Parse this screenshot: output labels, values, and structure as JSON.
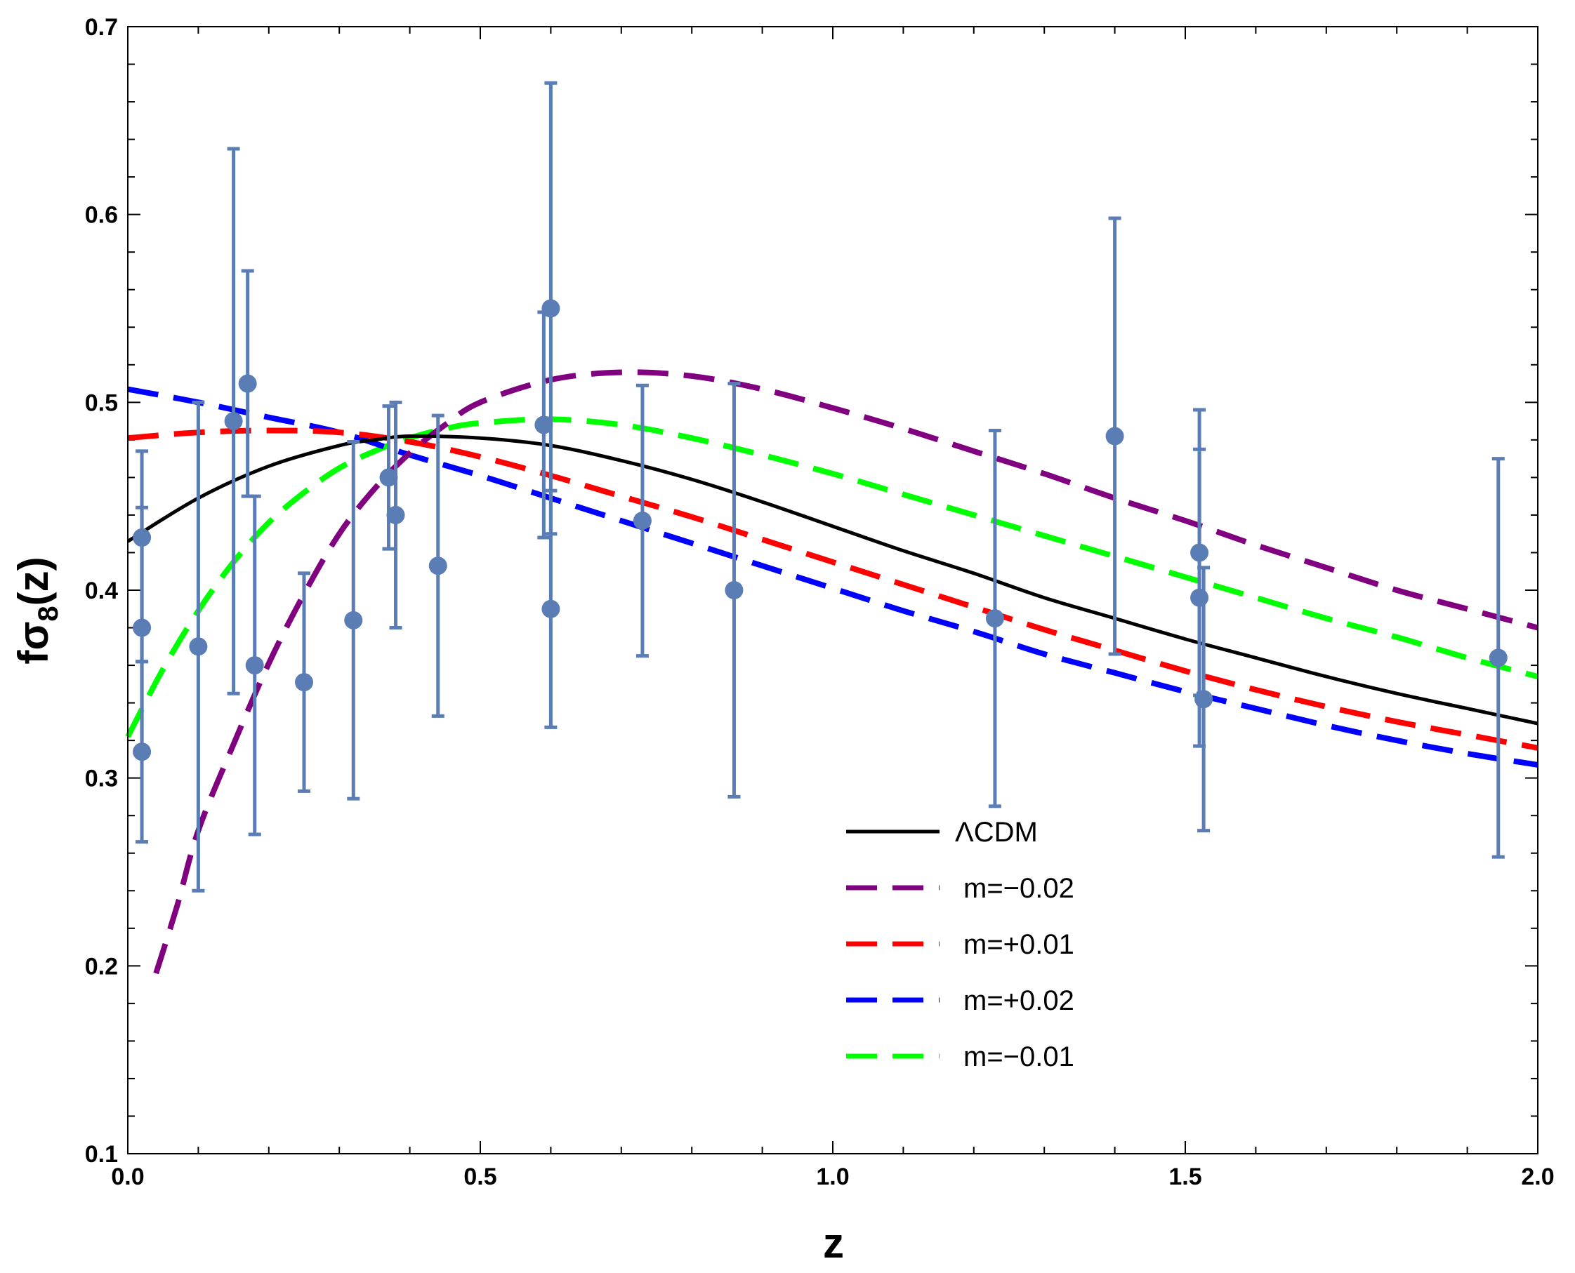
{
  "chart_data": {
    "type": "line",
    "title": "",
    "xlabel": "z",
    "ylabel": {
      "main": "fσ",
      "sub": "8",
      "tail": "(z)"
    },
    "xlim": [
      0.0,
      2.0
    ],
    "ylim": [
      0.1,
      0.7
    ],
    "xticks": [
      "0.0",
      "0.5",
      "1.0",
      "1.5",
      "2.0"
    ],
    "yticks": [
      "0.1",
      "0.2",
      "0.3",
      "0.4",
      "0.5",
      "0.6",
      "0.7"
    ],
    "xtick_values": [
      0.0,
      0.5,
      1.0,
      1.5,
      2.0
    ],
    "ytick_values": [
      0.1,
      0.2,
      0.3,
      0.4,
      0.5,
      0.6,
      0.7
    ],
    "legend_position": "lower-center",
    "series": [
      {
        "name": "ΛCDM",
        "color": "#000000",
        "style": "solid",
        "x": [
          0.0,
          0.1,
          0.2,
          0.3,
          0.35,
          0.4,
          0.5,
          0.6,
          0.7,
          0.8,
          0.9,
          1.0,
          1.1,
          1.2,
          1.3,
          1.4,
          1.5,
          1.6,
          1.7,
          1.8,
          1.9,
          2.0
        ],
        "y": [
          0.426,
          0.449,
          0.466,
          0.477,
          0.48,
          0.482,
          0.481,
          0.477,
          0.469,
          0.459,
          0.447,
          0.434,
          0.421,
          0.409,
          0.396,
          0.385,
          0.374,
          0.364,
          0.354,
          0.345,
          0.337,
          0.329
        ]
      },
      {
        "name": "m=−0.02",
        "color": "#800080",
        "style": "dashed",
        "x": [
          0.04,
          0.07,
          0.1,
          0.15,
          0.2,
          0.25,
          0.3,
          0.35,
          0.4,
          0.45,
          0.5,
          0.6,
          0.7,
          0.8,
          0.9,
          1.0,
          1.1,
          1.2,
          1.3,
          1.4,
          1.5,
          1.6,
          1.7,
          1.8,
          1.9,
          2.0
        ],
        "y": [
          0.196,
          0.232,
          0.272,
          0.318,
          0.361,
          0.398,
          0.43,
          0.454,
          0.473,
          0.488,
          0.5,
          0.512,
          0.516,
          0.514,
          0.507,
          0.497,
          0.486,
          0.474,
          0.462,
          0.449,
          0.437,
          0.424,
          0.412,
          0.4,
          0.39,
          0.38
        ]
      },
      {
        "name": "m=+0.01",
        "color": "#ff0000",
        "style": "dashed",
        "x": [
          0.0,
          0.1,
          0.2,
          0.3,
          0.4,
          0.5,
          0.6,
          0.7,
          0.8,
          0.9,
          1.0,
          1.1,
          1.2,
          1.3,
          1.4,
          1.5,
          1.6,
          1.7,
          1.8,
          1.9,
          2.0
        ],
        "y": [
          0.481,
          0.484,
          0.485,
          0.484,
          0.479,
          0.471,
          0.461,
          0.45,
          0.439,
          0.427,
          0.415,
          0.403,
          0.391,
          0.379,
          0.368,
          0.357,
          0.347,
          0.338,
          0.33,
          0.323,
          0.316
        ]
      },
      {
        "name": "m=+0.02",
        "color": "#0000ff",
        "style": "dashed",
        "x": [
          0.0,
          0.1,
          0.2,
          0.3,
          0.4,
          0.5,
          0.6,
          0.7,
          0.8,
          0.9,
          1.0,
          1.1,
          1.2,
          1.3,
          1.4,
          1.5,
          1.6,
          1.7,
          1.8,
          1.9,
          2.0
        ],
        "y": [
          0.507,
          0.5,
          0.492,
          0.484,
          0.472,
          0.461,
          0.449,
          0.437,
          0.425,
          0.413,
          0.401,
          0.389,
          0.378,
          0.366,
          0.356,
          0.346,
          0.337,
          0.328,
          0.32,
          0.313,
          0.307
        ]
      },
      {
        "name": "m=−0.01",
        "color": "#00ff00",
        "style": "dashed",
        "x": [
          0.0,
          0.05,
          0.1,
          0.15,
          0.2,
          0.25,
          0.3,
          0.35,
          0.4,
          0.45,
          0.5,
          0.6,
          0.7,
          0.8,
          0.9,
          1.0,
          1.1,
          1.2,
          1.3,
          1.4,
          1.5,
          1.6,
          1.7,
          1.8,
          1.9,
          2.0
        ],
        "y": [
          0.322,
          0.358,
          0.389,
          0.415,
          0.436,
          0.452,
          0.465,
          0.474,
          0.481,
          0.486,
          0.489,
          0.491,
          0.488,
          0.481,
          0.472,
          0.462,
          0.451,
          0.44,
          0.429,
          0.418,
          0.407,
          0.396,
          0.385,
          0.375,
          0.364,
          0.354
        ]
      }
    ],
    "errorbars": {
      "name": "data",
      "color": "#5b7db5",
      "points": [
        {
          "x": 0.02,
          "y": 0.428,
          "lo": 0.362,
          "hi": 0.474
        },
        {
          "x": 0.02,
          "y": 0.38,
          "lo": 0.316,
          "hi": 0.444
        },
        {
          "x": 0.02,
          "y": 0.314,
          "lo": 0.266,
          "hi": 0.362
        },
        {
          "x": 0.1,
          "y": 0.37,
          "lo": 0.24,
          "hi": 0.5
        },
        {
          "x": 0.15,
          "y": 0.49,
          "lo": 0.345,
          "hi": 0.635
        },
        {
          "x": 0.17,
          "y": 0.51,
          "lo": 0.45,
          "hi": 0.57
        },
        {
          "x": 0.18,
          "y": 0.36,
          "lo": 0.27,
          "hi": 0.45
        },
        {
          "x": 0.25,
          "y": 0.351,
          "lo": 0.293,
          "hi": 0.409
        },
        {
          "x": 0.32,
          "y": 0.384,
          "lo": 0.289,
          "hi": 0.479
        },
        {
          "x": 0.37,
          "y": 0.46,
          "lo": 0.422,
          "hi": 0.498
        },
        {
          "x": 0.38,
          "y": 0.44,
          "lo": 0.38,
          "hi": 0.5
        },
        {
          "x": 0.44,
          "y": 0.413,
          "lo": 0.333,
          "hi": 0.493
        },
        {
          "x": 0.59,
          "y": 0.488,
          "lo": 0.428,
          "hi": 0.548
        },
        {
          "x": 0.6,
          "y": 0.55,
          "lo": 0.43,
          "hi": 0.67
        },
        {
          "x": 0.6,
          "y": 0.39,
          "lo": 0.327,
          "hi": 0.453
        },
        {
          "x": 0.73,
          "y": 0.437,
          "lo": 0.365,
          "hi": 0.509
        },
        {
          "x": 0.86,
          "y": 0.4,
          "lo": 0.29,
          "hi": 0.51
        },
        {
          "x": 1.23,
          "y": 0.385,
          "lo": 0.285,
          "hi": 0.485
        },
        {
          "x": 1.4,
          "y": 0.482,
          "lo": 0.366,
          "hi": 0.598
        },
        {
          "x": 1.52,
          "y": 0.42,
          "lo": 0.344,
          "hi": 0.496
        },
        {
          "x": 1.52,
          "y": 0.396,
          "lo": 0.317,
          "hi": 0.475
        },
        {
          "x": 1.526,
          "y": 0.342,
          "lo": 0.272,
          "hi": 0.412
        },
        {
          "x": 1.944,
          "y": 0.364,
          "lo": 0.258,
          "hi": 0.47
        }
      ]
    }
  }
}
